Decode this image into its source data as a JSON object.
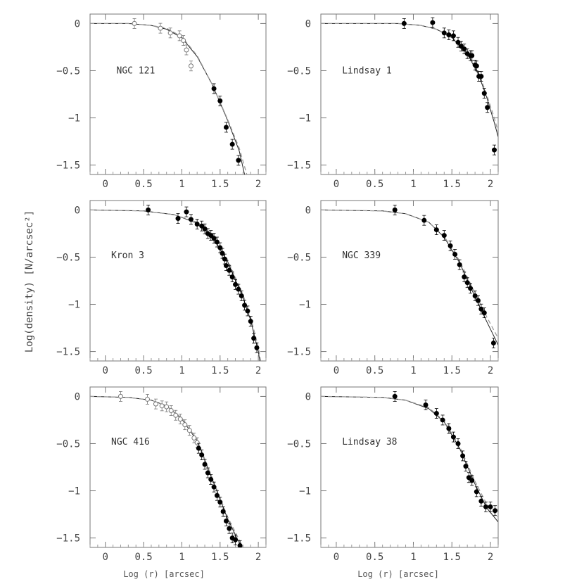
{
  "figure": {
    "ylabel": "Log(density) [N/arcsec²]",
    "xlabel": "Log (r) [arcsec]"
  },
  "chart_data": [
    {
      "type": "scatter",
      "title": "NGC 121",
      "xlim": [
        -0.2,
        2.1
      ],
      "ylim": [
        -1.6,
        0.1
      ],
      "xticks": [
        "0",
        "0.5",
        "1",
        "1.5",
        "2"
      ],
      "yticks": [
        "0",
        "-0.5",
        "-1",
        "-1.5"
      ],
      "open": [
        [
          0.38,
          0.0
        ],
        [
          0.72,
          -0.05
        ],
        [
          0.85,
          -0.1
        ],
        [
          0.97,
          -0.13
        ],
        [
          1.02,
          -0.18
        ],
        [
          1.06,
          -0.28
        ],
        [
          1.12,
          -0.45
        ]
      ],
      "filled": [
        [
          1.42,
          -0.69
        ],
        [
          1.5,
          -0.82
        ],
        [
          1.58,
          -1.1
        ],
        [
          1.66,
          -1.28
        ],
        [
          1.74,
          -1.45
        ]
      ],
      "curves": [
        {
          "style": "solid",
          "pts": [
            [
              -0.2,
              0.0
            ],
            [
              0.3,
              0.0
            ],
            [
              0.6,
              -0.02
            ],
            [
              0.8,
              -0.06
            ],
            [
              1.0,
              -0.15
            ],
            [
              1.2,
              -0.35
            ],
            [
              1.4,
              -0.65
            ],
            [
              1.6,
              -1.03
            ],
            [
              1.75,
              -1.35
            ],
            [
              1.82,
              -1.6
            ]
          ]
        },
        {
          "style": "dashed",
          "pts": [
            [
              -0.2,
              0.0
            ],
            [
              0.3,
              0.0
            ],
            [
              0.6,
              -0.02
            ],
            [
              0.8,
              -0.05
            ],
            [
              1.0,
              -0.14
            ],
            [
              1.2,
              -0.34
            ],
            [
              1.4,
              -0.65
            ],
            [
              1.6,
              -1.02
            ],
            [
              1.75,
              -1.32
            ],
            [
              1.85,
              -1.6
            ]
          ]
        }
      ]
    },
    {
      "type": "scatter",
      "title": "Lindsay 1",
      "xlim": [
        -0.2,
        2.1
      ],
      "ylim": [
        -1.6,
        0.1
      ],
      "xticks": [
        "0",
        "0.5",
        "1",
        "1.5",
        "2"
      ],
      "yticks": [
        "0",
        "-0.5",
        "-1",
        "-1.5"
      ],
      "open": [],
      "filled": [
        [
          0.88,
          0.0
        ],
        [
          1.25,
          0.01
        ],
        [
          1.4,
          -0.1
        ],
        [
          1.46,
          -0.12
        ],
        [
          1.52,
          -0.13
        ],
        [
          1.58,
          -0.2
        ],
        [
          1.62,
          -0.24
        ],
        [
          1.66,
          -0.27
        ],
        [
          1.7,
          -0.32
        ],
        [
          1.74,
          -0.34
        ],
        [
          1.76,
          -0.34
        ],
        [
          1.8,
          -0.44
        ],
        [
          1.82,
          -0.45
        ],
        [
          1.85,
          -0.56
        ],
        [
          1.88,
          -0.56
        ],
        [
          1.92,
          -0.74
        ],
        [
          1.96,
          -0.89
        ],
        [
          2.05,
          -1.34
        ]
      ],
      "curves": [
        {
          "style": "solid",
          "pts": [
            [
              -0.2,
              0.0
            ],
            [
              0.8,
              0.0
            ],
            [
              1.1,
              -0.02
            ],
            [
              1.3,
              -0.06
            ],
            [
              1.5,
              -0.15
            ],
            [
              1.7,
              -0.32
            ],
            [
              1.85,
              -0.55
            ],
            [
              1.95,
              -0.78
            ],
            [
              2.05,
              -1.05
            ],
            [
              2.1,
              -1.2
            ]
          ]
        },
        {
          "style": "dashed",
          "pts": [
            [
              -0.2,
              0.0
            ],
            [
              0.8,
              0.0
            ],
            [
              1.1,
              -0.02
            ],
            [
              1.3,
              -0.06
            ],
            [
              1.5,
              -0.14
            ],
            [
              1.7,
              -0.31
            ],
            [
              1.85,
              -0.53
            ],
            [
              1.95,
              -0.75
            ],
            [
              2.05,
              -1.0
            ],
            [
              2.1,
              -1.15
            ]
          ]
        }
      ]
    },
    {
      "type": "scatter",
      "title": "Kron 3",
      "xlim": [
        -0.2,
        2.1
      ],
      "ylim": [
        -1.6,
        0.1
      ],
      "xticks": [
        "0",
        "0.5",
        "1",
        "1.5",
        "2"
      ],
      "yticks": [
        "0",
        "-0.5",
        "-1",
        "-1.5"
      ],
      "open": [],
      "filled": [
        [
          0.56,
          0.0
        ],
        [
          0.95,
          -0.09
        ],
        [
          1.06,
          -0.02
        ],
        [
          1.12,
          -0.1
        ],
        [
          1.2,
          -0.15
        ],
        [
          1.26,
          -0.17
        ],
        [
          1.3,
          -0.2
        ],
        [
          1.34,
          -0.25
        ],
        [
          1.38,
          -0.27
        ],
        [
          1.42,
          -0.3
        ],
        [
          1.46,
          -0.34
        ],
        [
          1.5,
          -0.4
        ],
        [
          1.53,
          -0.46
        ],
        [
          1.56,
          -0.52
        ],
        [
          1.58,
          -0.59
        ],
        [
          1.62,
          -0.64
        ],
        [
          1.66,
          -0.71
        ],
        [
          1.7,
          -0.79
        ],
        [
          1.74,
          -0.84
        ],
        [
          1.78,
          -0.91
        ],
        [
          1.82,
          -1.01
        ],
        [
          1.86,
          -1.07
        ],
        [
          1.9,
          -1.18
        ],
        [
          1.94,
          -1.36
        ],
        [
          1.98,
          -1.46
        ]
      ],
      "curves": [
        {
          "style": "solid",
          "pts": [
            [
              -0.2,
              0.0
            ],
            [
              0.5,
              -0.01
            ],
            [
              0.9,
              -0.05
            ],
            [
              1.2,
              -0.14
            ],
            [
              1.4,
              -0.28
            ],
            [
              1.6,
              -0.55
            ],
            [
              1.8,
              -0.93
            ],
            [
              1.9,
              -1.17
            ],
            [
              2.0,
              -1.5
            ],
            [
              2.02,
              -1.6
            ]
          ]
        },
        {
          "style": "dashed",
          "pts": [
            [
              -0.2,
              0.0
            ],
            [
              0.5,
              -0.01
            ],
            [
              0.9,
              -0.05
            ],
            [
              1.2,
              -0.13
            ],
            [
              1.4,
              -0.27
            ],
            [
              1.6,
              -0.53
            ],
            [
              1.8,
              -0.9
            ],
            [
              1.9,
              -1.14
            ],
            [
              2.0,
              -1.45
            ],
            [
              2.03,
              -1.6
            ]
          ]
        }
      ]
    },
    {
      "type": "scatter",
      "title": "NGC 339",
      "xlim": [
        -0.2,
        2.1
      ],
      "ylim": [
        -1.6,
        0.1
      ],
      "xticks": [
        "0",
        "0.5",
        "1",
        "1.5",
        "2"
      ],
      "yticks": [
        "0",
        "-0.5",
        "-1",
        "-1.5"
      ],
      "open": [],
      "filled": [
        [
          0.76,
          0.0
        ],
        [
          1.14,
          -0.11
        ],
        [
          1.3,
          -0.21
        ],
        [
          1.4,
          -0.27
        ],
        [
          1.48,
          -0.38
        ],
        [
          1.54,
          -0.47
        ],
        [
          1.6,
          -0.58
        ],
        [
          1.66,
          -0.71
        ],
        [
          1.7,
          -0.77
        ],
        [
          1.74,
          -0.83
        ],
        [
          1.8,
          -0.91
        ],
        [
          1.84,
          -0.96
        ],
        [
          1.88,
          -1.05
        ],
        [
          1.92,
          -1.09
        ],
        [
          2.04,
          -1.41
        ]
      ],
      "curves": [
        {
          "style": "solid",
          "pts": [
            [
              -0.2,
              0.0
            ],
            [
              0.6,
              -0.01
            ],
            [
              0.9,
              -0.04
            ],
            [
              1.2,
              -0.13
            ],
            [
              1.4,
              -0.29
            ],
            [
              1.6,
              -0.56
            ],
            [
              1.8,
              -0.92
            ],
            [
              1.95,
              -1.18
            ],
            [
              2.1,
              -1.43
            ]
          ]
        },
        {
          "style": "dashed",
          "pts": [
            [
              -0.2,
              0.0
            ],
            [
              0.6,
              -0.01
            ],
            [
              0.9,
              -0.04
            ],
            [
              1.2,
              -0.13
            ],
            [
              1.4,
              -0.28
            ],
            [
              1.6,
              -0.54
            ],
            [
              1.8,
              -0.88
            ],
            [
              1.95,
              -1.13
            ],
            [
              2.1,
              -1.36
            ]
          ]
        }
      ]
    },
    {
      "type": "scatter",
      "title": "NGC 416",
      "xlim": [
        -0.2,
        2.1
      ],
      "ylim": [
        -1.6,
        0.1
      ],
      "xticks": [
        "0",
        "0.5",
        "1",
        "1.5",
        "2"
      ],
      "yticks": [
        "0",
        "-0.5",
        "-1",
        "-1.5"
      ],
      "open": [
        [
          0.2,
          0.0
        ],
        [
          0.55,
          -0.03
        ],
        [
          0.66,
          -0.08
        ],
        [
          0.74,
          -0.1
        ],
        [
          0.8,
          -0.11
        ],
        [
          0.86,
          -0.15
        ],
        [
          0.92,
          -0.2
        ],
        [
          0.98,
          -0.24
        ],
        [
          1.04,
          -0.3
        ],
        [
          1.1,
          -0.36
        ],
        [
          1.16,
          -0.44
        ],
        [
          1.2,
          -0.49
        ]
      ],
      "filled": [
        [
          1.22,
          -0.55
        ],
        [
          1.26,
          -0.62
        ],
        [
          1.3,
          -0.72
        ],
        [
          1.34,
          -0.81
        ],
        [
          1.38,
          -0.88
        ],
        [
          1.42,
          -0.96
        ],
        [
          1.46,
          -1.05
        ],
        [
          1.5,
          -1.12
        ],
        [
          1.54,
          -1.22
        ],
        [
          1.58,
          -1.32
        ],
        [
          1.62,
          -1.4
        ],
        [
          1.66,
          -1.5
        ],
        [
          1.7,
          -1.52
        ],
        [
          1.76,
          -1.58
        ]
      ],
      "curves": [
        {
          "style": "solid",
          "pts": [
            [
              -0.2,
              0.0
            ],
            [
              0.3,
              -0.01
            ],
            [
              0.6,
              -0.04
            ],
            [
              0.8,
              -0.1
            ],
            [
              1.0,
              -0.24
            ],
            [
              1.2,
              -0.47
            ],
            [
              1.4,
              -0.88
            ],
            [
              1.6,
              -1.3
            ],
            [
              1.78,
              -1.6
            ]
          ]
        },
        {
          "style": "dashed",
          "pts": [
            [
              -0.2,
              0.0
            ],
            [
              0.3,
              -0.01
            ],
            [
              0.6,
              -0.04
            ],
            [
              0.8,
              -0.1
            ],
            [
              1.0,
              -0.23
            ],
            [
              1.2,
              -0.46
            ],
            [
              1.4,
              -0.87
            ],
            [
              1.6,
              -1.28
            ],
            [
              1.8,
              -1.6
            ]
          ]
        }
      ]
    },
    {
      "type": "scatter",
      "title": "Lindsay 38",
      "xlim": [
        -0.2,
        2.1
      ],
      "ylim": [
        -1.6,
        0.1
      ],
      "xticks": [
        "0",
        "0.5",
        "1",
        "1.5",
        "2"
      ],
      "yticks": [
        "0",
        "-0.5",
        "-1",
        "-1.5"
      ],
      "open": [],
      "filled": [
        [
          0.76,
          0.0
        ],
        [
          1.16,
          -0.09
        ],
        [
          1.3,
          -0.18
        ],
        [
          1.38,
          -0.25
        ],
        [
          1.46,
          -0.34
        ],
        [
          1.52,
          -0.43
        ],
        [
          1.58,
          -0.5
        ],
        [
          1.64,
          -0.63
        ],
        [
          1.68,
          -0.74
        ],
        [
          1.72,
          -0.86
        ],
        [
          1.76,
          -0.89
        ],
        [
          1.82,
          -1.01
        ],
        [
          1.88,
          -1.11
        ],
        [
          1.94,
          -1.17
        ],
        [
          2.0,
          -1.17
        ],
        [
          2.06,
          -1.21
        ]
      ],
      "curves": [
        {
          "style": "solid",
          "pts": [
            [
              -0.2,
              0.0
            ],
            [
              0.6,
              -0.01
            ],
            [
              0.9,
              -0.04
            ],
            [
              1.2,
              -0.13
            ],
            [
              1.4,
              -0.27
            ],
            [
              1.6,
              -0.55
            ],
            [
              1.8,
              -0.93
            ],
            [
              1.95,
              -1.18
            ],
            [
              2.1,
              -1.33
            ]
          ]
        },
        {
          "style": "dashed",
          "pts": [
            [
              -0.2,
              0.0
            ],
            [
              0.6,
              -0.01
            ],
            [
              0.9,
              -0.04
            ],
            [
              1.2,
              -0.12
            ],
            [
              1.4,
              -0.26
            ],
            [
              1.6,
              -0.53
            ],
            [
              1.8,
              -0.9
            ],
            [
              1.95,
              -1.14
            ],
            [
              2.1,
              -1.28
            ]
          ]
        }
      ]
    }
  ]
}
